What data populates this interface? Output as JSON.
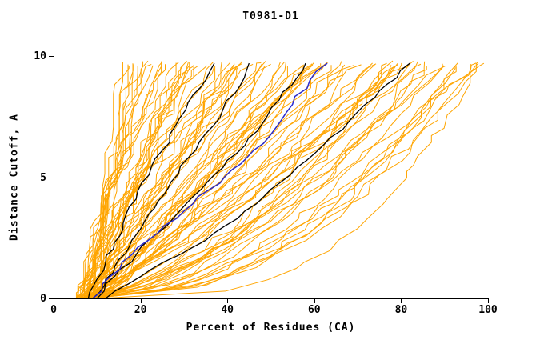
{
  "chart_data": {
    "type": "line",
    "title": "T0981-D1",
    "xlabel": "Percent of Residues (CA)",
    "ylabel": "Distance Cutoff, A",
    "xlim": [
      0,
      100
    ],
    "ylim": [
      0,
      10
    ],
    "x_ticks": [
      0,
      20,
      40,
      60,
      80,
      100
    ],
    "x_tick_labels": [
      "0",
      "20",
      "40",
      "60",
      "80",
      "100"
    ],
    "y_ticks": [
      0,
      5,
      10
    ],
    "y_tick_labels": [
      "0",
      "5",
      "10"
    ],
    "grid": false,
    "legend": "none",
    "colors": {
      "orange": "#FFA500",
      "black": "#000000",
      "blue": "#2A2ACC",
      "axis": "#000000"
    },
    "orange_models": {
      "description": "ensemble of prediction curves, percent of CA residues under distance cutoff",
      "count": 90,
      "seed": 20981,
      "start_x_range": [
        5,
        11
      ],
      "top_x_min": 17,
      "top_x_max": 99,
      "top_y_range": [
        9.55,
        9.8
      ]
    },
    "highlight_models": [
      {
        "name": "black-model-1",
        "color": "black",
        "points": [
          [
            8,
            0
          ],
          [
            10,
            0.8
          ],
          [
            12,
            1.5
          ],
          [
            14,
            2.3
          ],
          [
            16,
            3.1
          ],
          [
            19,
            4.1
          ],
          [
            22,
            5.1
          ],
          [
            25,
            6.1
          ],
          [
            28,
            7.1
          ],
          [
            31,
            8.1
          ],
          [
            35,
            9.0
          ],
          [
            37,
            9.7
          ]
        ]
      },
      {
        "name": "black-model-2",
        "color": "black",
        "points": [
          [
            9,
            0
          ],
          [
            12,
            0.8
          ],
          [
            15,
            1.6
          ],
          [
            18,
            2.4
          ],
          [
            21,
            3.2
          ],
          [
            24,
            4.0
          ],
          [
            27,
            4.8
          ],
          [
            31,
            5.8
          ],
          [
            35,
            6.8
          ],
          [
            39,
            7.8
          ],
          [
            43,
            8.8
          ],
          [
            45,
            9.7
          ]
        ]
      },
      {
        "name": "black-model-3",
        "color": "black",
        "points": [
          [
            10,
            0
          ],
          [
            14,
            0.9
          ],
          [
            19,
            1.8
          ],
          [
            24,
            2.7
          ],
          [
            29,
            3.6
          ],
          [
            34,
            4.5
          ],
          [
            39,
            5.4
          ],
          [
            44,
            6.3
          ],
          [
            48,
            7.2
          ],
          [
            52,
            8.2
          ],
          [
            56,
            9.1
          ],
          [
            58,
            9.7
          ]
        ]
      },
      {
        "name": "black-model-4",
        "color": "black",
        "points": [
          [
            12,
            0
          ],
          [
            20,
            0.9
          ],
          [
            29,
            1.8
          ],
          [
            37,
            2.7
          ],
          [
            44,
            3.6
          ],
          [
            50,
            4.5
          ],
          [
            56,
            5.4
          ],
          [
            62,
            6.3
          ],
          [
            68,
            7.3
          ],
          [
            74,
            8.3
          ],
          [
            79,
            9.1
          ],
          [
            82,
            9.7
          ]
        ]
      },
      {
        "name": "blue-model",
        "color": "blue",
        "points": [
          [
            9,
            0
          ],
          [
            13,
            0.9
          ],
          [
            18,
            1.8
          ],
          [
            24,
            2.7
          ],
          [
            30,
            3.6
          ],
          [
            36,
            4.5
          ],
          [
            41,
            5.3
          ],
          [
            46,
            6.1
          ],
          [
            51,
            7.0
          ],
          [
            55,
            8.0
          ],
          [
            59,
            9.0
          ],
          [
            63,
            9.7
          ]
        ]
      }
    ]
  }
}
